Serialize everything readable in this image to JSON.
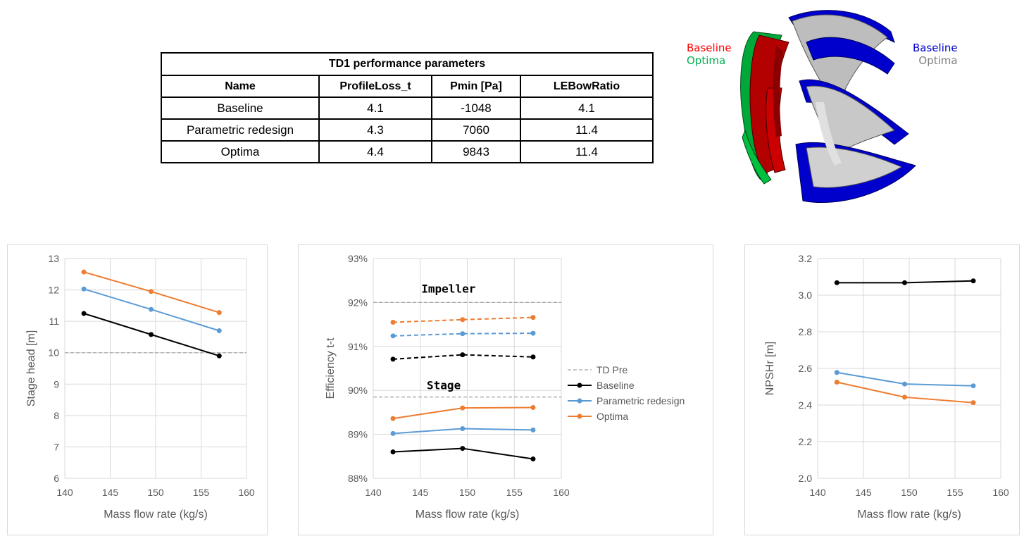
{
  "table": {
    "title": "TD1 performance parameters",
    "headers": [
      "Name",
      "ProfileLoss_t",
      "Pmin [Pa]",
      "LEBowRatio"
    ],
    "rows": [
      [
        "Baseline",
        "4.1",
        "-1048",
        "4.1"
      ],
      [
        "Parametric redesign",
        "4.3",
        "7060",
        "11.4"
      ],
      [
        "Optima",
        "4.4",
        "9843",
        "11.4"
      ]
    ]
  },
  "impeller_legend": {
    "left": [
      {
        "text": "Baseline",
        "color": "#ff0000"
      },
      {
        "text": "Optima",
        "color": "#00b050"
      }
    ],
    "right": [
      {
        "text": "Baseline",
        "color": "#0000cc"
      },
      {
        "text": "Optima",
        "color": "#808080"
      }
    ]
  },
  "colors": {
    "baseline": "#000000",
    "parametric": "#5b9bd5",
    "optima": "#ed7d31",
    "tdpre": "#a6a6a6",
    "grid": "#d9d9d9"
  },
  "chart_data": [
    {
      "type": "line",
      "xlabel": "Mass flow rate (kg/s)",
      "ylabel": "Stage head [m]",
      "xlim": [
        140,
        160
      ],
      "ylim": [
        6,
        13
      ],
      "xticks": [
        "140",
        "145",
        "150",
        "155",
        "160"
      ],
      "yticks": [
        "6",
        "7",
        "8",
        "9",
        "10",
        "11",
        "12",
        "13"
      ],
      "reference_line": {
        "name": "TD Pre",
        "y": 10
      },
      "series": [
        {
          "name": "Baseline",
          "x": [
            142.1,
            149.5,
            157.0
          ],
          "y": [
            11.25,
            10.58,
            9.9
          ]
        },
        {
          "name": "Parametric redesign",
          "x": [
            142.1,
            149.5,
            157.0
          ],
          "y": [
            12.03,
            11.38,
            10.7
          ]
        },
        {
          "name": "Optima",
          "x": [
            142.1,
            149.5,
            157.0
          ],
          "y": [
            12.57,
            11.95,
            11.28
          ]
        }
      ]
    },
    {
      "type": "line",
      "xlabel": "Mass flow rate (kg/s)",
      "ylabel": "Efficiency t-t",
      "xlim": [
        140,
        160
      ],
      "ylim": [
        0.88,
        0.93
      ],
      "xticks": [
        "140",
        "145",
        "150",
        "155",
        "160"
      ],
      "yticks": [
        "88%",
        "89%",
        "90%",
        "91%",
        "92%",
        "93%"
      ],
      "annotations": [
        "Impeller",
        "Stage"
      ],
      "legend": [
        "TD Pre",
        "Baseline",
        "Parametric redesign",
        "Optima"
      ],
      "reference_lines": [
        {
          "name": "TD Pre",
          "y": 0.92
        },
        {
          "name": "TD Pre",
          "y": 0.8985
        }
      ],
      "series": [
        {
          "name": "Baseline",
          "group": "Impeller",
          "dashed": true,
          "x": [
            142.1,
            149.5,
            157.0
          ],
          "y": [
            0.9071,
            0.9081,
            0.9076
          ]
        },
        {
          "name": "Parametric redesign",
          "group": "Impeller",
          "dashed": true,
          "x": [
            142.1,
            149.5,
            157.0
          ],
          "y": [
            0.9124,
            0.9129,
            0.913
          ]
        },
        {
          "name": "Optima",
          "group": "Impeller",
          "dashed": true,
          "x": [
            142.1,
            149.5,
            157.0
          ],
          "y": [
            0.9155,
            0.9161,
            0.9166
          ]
        },
        {
          "name": "Baseline",
          "group": "Stage",
          "dashed": false,
          "x": [
            142.1,
            149.5,
            157.0
          ],
          "y": [
            0.886,
            0.8868,
            0.8844
          ]
        },
        {
          "name": "Parametric redesign",
          "group": "Stage",
          "dashed": false,
          "x": [
            142.1,
            149.5,
            157.0
          ],
          "y": [
            0.8902,
            0.8913,
            0.891
          ]
        },
        {
          "name": "Optima",
          "group": "Stage",
          "dashed": false,
          "x": [
            142.1,
            149.5,
            157.0
          ],
          "y": [
            0.8936,
            0.896,
            0.8961
          ]
        }
      ]
    },
    {
      "type": "line",
      "xlabel": "Mass flow rate (kg/s)",
      "ylabel": "NPSHr [m]",
      "xlim": [
        140,
        160
      ],
      "ylim": [
        2.0,
        3.2
      ],
      "xticks": [
        "140",
        "145",
        "150",
        "155",
        "160"
      ],
      "yticks": [
        "2.0",
        "2.2",
        "2.4",
        "2.6",
        "2.8",
        "3.0",
        "3.2"
      ],
      "series": [
        {
          "name": "Baseline",
          "x": [
            142.1,
            149.5,
            157.0
          ],
          "y": [
            3.068,
            3.068,
            3.078
          ]
        },
        {
          "name": "Parametric redesign",
          "x": [
            142.1,
            149.5,
            157.0
          ],
          "y": [
            2.578,
            2.515,
            2.505
          ]
        },
        {
          "name": "Optima",
          "x": [
            142.1,
            149.5,
            157.0
          ],
          "y": [
            2.525,
            2.443,
            2.413
          ]
        }
      ]
    }
  ]
}
